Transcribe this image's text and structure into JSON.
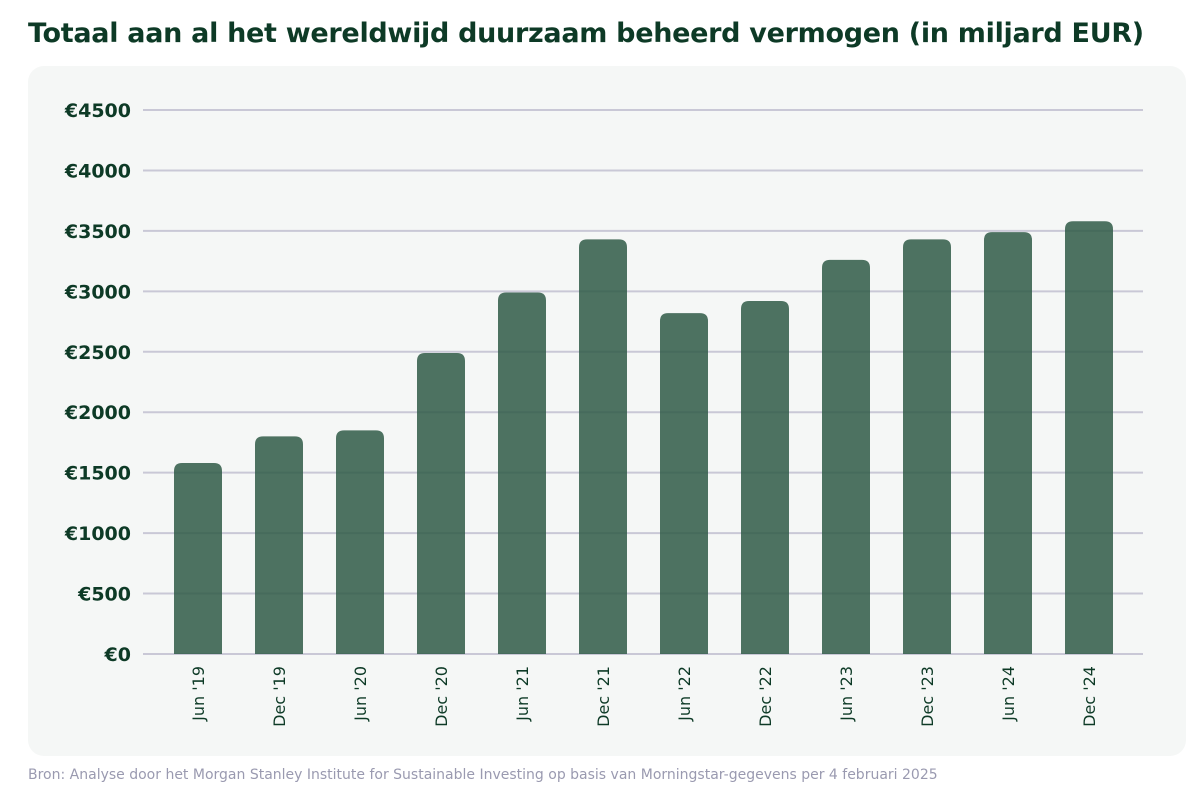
{
  "chart_data": {
    "type": "bar",
    "title": "Totaal aan al het wereldwijd duurzaam beheerd vermogen (in miljard EUR)",
    "categories": [
      "Jun '19",
      "Dec '19",
      "Jun '20",
      "Dec '20",
      "Jun '21",
      "Dec '21",
      "Jun '22",
      "Dec '22",
      "Jun '23",
      "Dec '23",
      "Jun '24",
      "Dec '24"
    ],
    "values": [
      1580,
      1800,
      1850,
      2490,
      2990,
      3430,
      2820,
      2920,
      3260,
      3430,
      3490,
      3580
    ],
    "ylim": [
      0,
      4500
    ],
    "yticks": [
      0,
      500,
      1000,
      1500,
      2000,
      2500,
      3000,
      3500,
      4000,
      4500
    ],
    "ytick_prefix": "€",
    "grid": true,
    "colors": {
      "bar": "#2f5b46",
      "grid": "#c9c8d6",
      "text": "#0d3a26"
    }
  },
  "source": "Bron: Analyse door het Morgan Stanley Institute for Sustainable Investing op basis van Morningstar-gegevens per 4 februari 2025"
}
